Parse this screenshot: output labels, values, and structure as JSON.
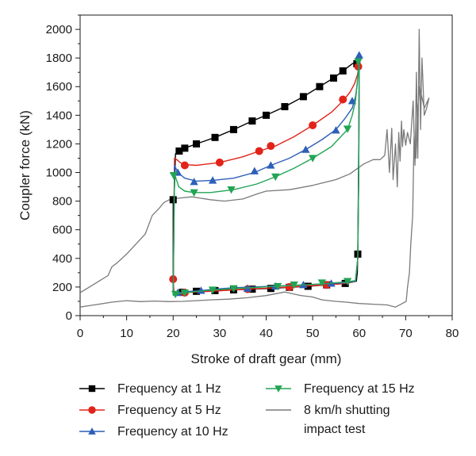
{
  "chart_data": {
    "type": "line",
    "xlabel": "Stroke of draft gear (mm)",
    "ylabel": "Coupler force (kN)",
    "xlim": [
      0,
      80
    ],
    "ylim": [
      0,
      2100
    ],
    "xticks": [
      "0",
      "10",
      "20",
      "30",
      "40",
      "50",
      "60",
      "70",
      "80"
    ],
    "yticks": [
      "0",
      "200",
      "400",
      "600",
      "800",
      "1000",
      "1200",
      "1400",
      "1600",
      "1800",
      "2000"
    ],
    "grid": false,
    "legend_position": "bottom",
    "series": [
      {
        "name": "Frequency at 1 Hz",
        "color": "#000000",
        "marker": "square",
        "x": [
          20.0,
          20.2,
          20.5,
          21.0,
          22.5,
          25,
          29,
          33,
          37,
          40,
          44,
          48,
          51.5,
          54.5,
          56.5,
          58.5,
          59.7,
          59.9,
          60.0,
          59.9,
          59.8,
          59.7,
          59.6,
          59.4,
          57,
          53,
          49,
          45,
          41,
          37,
          33,
          29,
          25,
          22,
          20.5,
          20.1,
          20.0,
          20.0,
          20.0
        ],
        "y": [
          150,
          800,
          1130,
          1150,
          1170,
          1200,
          1245,
          1300,
          1360,
          1400,
          1460,
          1530,
          1600,
          1660,
          1710,
          1760,
          1775,
          1780,
          1700,
          1200,
          800,
          430,
          300,
          240,
          225,
          215,
          205,
          198,
          190,
          185,
          180,
          175,
          170,
          163,
          160,
          155,
          150,
          500,
          800
        ],
        "marker_x": [
          20.0,
          21.3,
          22.5,
          25,
          29,
          33,
          37,
          40,
          44,
          48,
          51.5,
          54.5,
          56.5,
          59.5,
          59.7,
          57,
          53,
          49,
          45,
          41,
          37,
          33,
          29,
          25,
          22
        ],
        "marker_y": [
          810,
          1150,
          1170,
          1200,
          1245,
          1300,
          1360,
          1400,
          1460,
          1530,
          1600,
          1660,
          1710,
          1760,
          430,
          225,
          215,
          205,
          198,
          190,
          185,
          180,
          175,
          170,
          163
        ]
      },
      {
        "name": "Frequency at 5 Hz",
        "color": "#e2231a",
        "marker": "circle",
        "x": [
          20.0,
          20.3,
          20.8,
          21.5,
          22.5,
          25,
          30,
          35,
          38.5,
          42,
          46,
          50,
          54,
          56.5,
          58,
          59,
          59.6,
          59.85,
          60.0,
          59.9,
          59.7,
          59.2,
          57,
          53,
          49,
          45,
          41,
          37,
          33,
          29,
          25,
          22.5,
          21,
          20.2,
          20.0
        ],
        "y": [
          255,
          1100,
          1090,
          1070,
          1055,
          1050,
          1070,
          1110,
          1150,
          1185,
          1250,
          1330,
          1420,
          1500,
          1560,
          1620,
          1680,
          1720,
          1740,
          1000,
          400,
          240,
          225,
          215,
          208,
          200,
          193,
          187,
          180,
          172,
          165,
          160,
          155,
          150,
          255
        ],
        "marker_x": [
          20.0,
          22.5,
          30,
          38.5,
          41,
          50,
          56.5,
          59.8,
          53,
          45,
          36,
          22.5
        ],
        "marker_y": [
          255,
          1050,
          1070,
          1150,
          1185,
          1330,
          1510,
          1740,
          215,
          200,
          185,
          160
        ]
      },
      {
        "name": "Frequency at 10 Hz",
        "color": "#2d5fb8",
        "marker": "triangle-up",
        "x": [
          20.0,
          20.3,
          21.0,
          22.5,
          25,
          28.5,
          33,
          37.5,
          41,
          45,
          48.5,
          52,
          55,
          57,
          58.5,
          59.2,
          59.6,
          59.8,
          60.0,
          59.9,
          59.7,
          59.2,
          57,
          54,
          51,
          48,
          45,
          41,
          37,
          33,
          29,
          26,
          23,
          21,
          20.2,
          20.0
        ],
        "y": [
          145,
          1050,
          1000,
          960,
          940,
          945,
          960,
          1000,
          1050,
          1100,
          1160,
          1230,
          1300,
          1380,
          1450,
          1530,
          1620,
          1720,
          1820,
          1000,
          400,
          240,
          230,
          225,
          220,
          215,
          210,
          205,
          200,
          195,
          185,
          175,
          168,
          160,
          150,
          145
        ],
        "marker_x": [
          21.0,
          24.5,
          28.5,
          37.5,
          41,
          48.5,
          55,
          58.5,
          60.0,
          54,
          48,
          42,
          36,
          26,
          21
        ],
        "marker_y": [
          1000,
          935,
          945,
          1010,
          1050,
          1160,
          1295,
          1500,
          1820,
          225,
          215,
          205,
          190,
          175,
          160
        ]
      },
      {
        "name": "Frequency at 15 Hz",
        "color": "#22a454",
        "marker": "triangle-down",
        "x": [
          20.0,
          20.3,
          21.2,
          22.5,
          24.5,
          28,
          33,
          38,
          42,
          46,
          50,
          54,
          57.5,
          58.5,
          59.2,
          59.5,
          59.8,
          60.0,
          59.9,
          59.7,
          59.2,
          57,
          54,
          51,
          47,
          43,
          39,
          35,
          31,
          27,
          24,
          22,
          20.5,
          20.0
        ],
        "y": [
          140,
          990,
          900,
          870,
          860,
          860,
          880,
          920,
          970,
          1030,
          1100,
          1180,
          1300,
          1400,
          1500,
          1600,
          1700,
          1770,
          1000,
          400,
          245,
          235,
          228,
          220,
          213,
          206,
          199,
          192,
          185,
          175,
          165,
          158,
          150,
          140
        ],
        "marker_x": [
          20.1,
          24.5,
          32.5,
          42,
          50,
          57.5,
          59.8,
          57.5,
          52,
          46,
          42.5,
          33,
          28.5,
          22.5,
          20.5
        ],
        "marker_y": [
          980,
          860,
          880,
          970,
          1100,
          1305,
          1775,
          240,
          230,
          215,
          205,
          190,
          180,
          160,
          150
        ]
      },
      {
        "name": "8 km/h shutting impact test",
        "color": "#7a7a7a",
        "marker": "none",
        "x": [
          0,
          2,
          4,
          6,
          6.8,
          8,
          10,
          12,
          14,
          15.5,
          17,
          18,
          19.5,
          21,
          24,
          26,
          28,
          31,
          35,
          38,
          40,
          45,
          50,
          55,
          58,
          61,
          63,
          64.5,
          65.5,
          66,
          66.5,
          67,
          67.3,
          67.8,
          68.2,
          68.5,
          68.8,
          69.1,
          69.3,
          69.6,
          70,
          70.4,
          71,
          71.6,
          72,
          72.3,
          72.6,
          72.9,
          73.2,
          73.5,
          74,
          74.5,
          75,
          74,
          73,
          72.5,
          72.2,
          71.8,
          71.5,
          71.1,
          70.8,
          70.4,
          70.1,
          69,
          67.8,
          66,
          63,
          60,
          57,
          55,
          52,
          50,
          47.5,
          44,
          40,
          36,
          32,
          28,
          25,
          22,
          19,
          16,
          13,
          10,
          7,
          4,
          2,
          0,
          0
        ],
        "y": [
          160,
          200,
          240,
          280,
          340,
          370,
          430,
          500,
          570,
          700,
          750,
          790,
          815,
          820,
          830,
          820,
          810,
          800,
          815,
          850,
          870,
          880,
          910,
          950,
          990,
          1060,
          1090,
          1090,
          1120,
          1300,
          1000,
          1310,
          950,
          1200,
          900,
          1280,
          1080,
          1360,
          1180,
          1300,
          1190,
          1280,
          1200,
          1500,
          1050,
          1700,
          1100,
          2000,
          1300,
          1800,
          1400,
          1450,
          1520,
          1450,
          1600,
          1400,
          1100,
          1250,
          700,
          500,
          300,
          200,
          100,
          80,
          60,
          75,
          80,
          85,
          95,
          100,
          110,
          130,
          140,
          165,
          140,
          125,
          115,
          110,
          105,
          100,
          98,
          102,
          98,
          105,
          95,
          80,
          70,
          60,
          60
        ],
        "marker_x": [],
        "marker_y": []
      }
    ]
  }
}
